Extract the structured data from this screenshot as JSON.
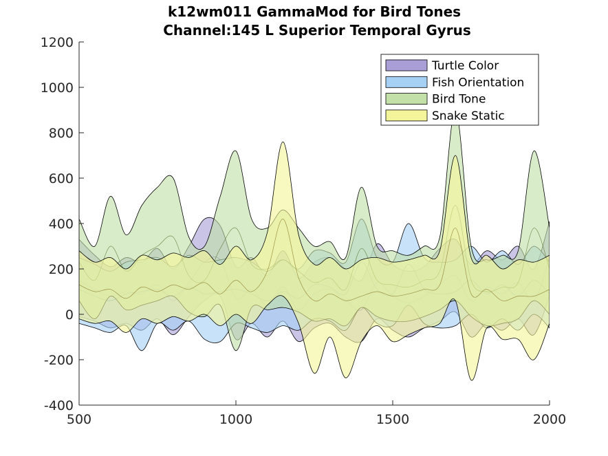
{
  "chart_data": {
    "type": "area",
    "title": "k12wm011 GammaMod for Bird Tones",
    "subtitle": "Channel:145 L Superior Temporal Gyrus",
    "xlabel": "",
    "ylabel": "",
    "xlim": [
      500,
      2000
    ],
    "ylim": [
      -400,
      1200
    ],
    "xticks": [
      500,
      1000,
      1500,
      2000
    ],
    "xtick_labels": [
      "500",
      "1000",
      "1500",
      "2000"
    ],
    "yticks": [
      -400,
      -200,
      0,
      200,
      400,
      600,
      800,
      1000,
      1200
    ],
    "ytick_labels": [
      "-400",
      "-200",
      "0",
      "200",
      "400",
      "600",
      "800",
      "1000",
      "1200"
    ],
    "grid": false,
    "legend_placement": "top-right",
    "series": [
      {
        "name": "Turtle Color",
        "color": "#a99fd6",
        "x": [
          500,
          550,
          600,
          650,
          700,
          750,
          800,
          850,
          900,
          950,
          1000,
          1050,
          1100,
          1150,
          1200,
          1250,
          1300,
          1350,
          1400,
          1450,
          1500,
          1550,
          1600,
          1650,
          1700,
          1750,
          1800,
          1850,
          1900,
          1950,
          2000
        ],
        "upper": [
          330,
          260,
          210,
          250,
          230,
          290,
          200,
          300,
          420,
          390,
          210,
          250,
          170,
          280,
          160,
          230,
          250,
          200,
          150,
          310,
          220,
          190,
          210,
          290,
          330,
          220,
          280,
          240,
          300,
          200,
          410
        ],
        "mean": [
          150,
          110,
          80,
          100,
          90,
          130,
          60,
          140,
          230,
          240,
          70,
          110,
          40,
          120,
          20,
          90,
          110,
          60,
          20,
          140,
          80,
          50,
          80,
          130,
          170,
          60,
          120,
          90,
          140,
          60,
          250
        ],
        "lower": [
          -10,
          -30,
          -60,
          -40,
          -70,
          -20,
          -90,
          -10,
          60,
          80,
          -110,
          -40,
          -100,
          -30,
          -120,
          -60,
          -40,
          -100,
          -120,
          -20,
          -70,
          -100,
          -60,
          -30,
          10,
          -100,
          -40,
          -70,
          -20,
          -90,
          80
        ]
      },
      {
        "name": "Fish Orientation",
        "color": "#a6d1f5",
        "x": [
          500,
          550,
          600,
          650,
          700,
          750,
          800,
          850,
          900,
          950,
          1000,
          1050,
          1100,
          1150,
          1200,
          1250,
          1300,
          1350,
          1400,
          1450,
          1500,
          1550,
          1600,
          1650,
          1700,
          1750,
          1800,
          1850,
          1900,
          1950,
          2000
        ],
        "upper": [
          250,
          220,
          190,
          230,
          240,
          250,
          210,
          260,
          230,
          240,
          250,
          230,
          190,
          240,
          200,
          280,
          270,
          230,
          420,
          250,
          230,
          400,
          250,
          230,
          240,
          300,
          230,
          280,
          220,
          300,
          230
        ],
        "mean": [
          110,
          80,
          60,
          90,
          100,
          110,
          80,
          120,
          90,
          100,
          110,
          90,
          60,
          100,
          70,
          130,
          120,
          90,
          230,
          110,
          90,
          220,
          110,
          90,
          100,
          150,
          90,
          130,
          80,
          150,
          90
        ],
        "lower": [
          -40,
          -60,
          -80,
          -50,
          -160,
          -40,
          -70,
          -30,
          -110,
          -120,
          -40,
          -60,
          -80,
          -50,
          -70,
          -20,
          -30,
          -70,
          30,
          -40,
          -50,
          40,
          -40,
          -60,
          -50,
          0,
          -60,
          -20,
          -70,
          0,
          -60
        ]
      },
      {
        "name": "Bird Tone",
        "color": "#c2e0a8",
        "x": [
          500,
          550,
          600,
          650,
          700,
          750,
          800,
          850,
          900,
          950,
          1000,
          1050,
          1100,
          1150,
          1200,
          1250,
          1300,
          1350,
          1400,
          1450,
          1500,
          1550,
          1600,
          1650,
          1700,
          1750,
          1800,
          1850,
          1900,
          1950,
          2000
        ],
        "upper": [
          420,
          300,
          520,
          350,
          480,
          560,
          600,
          340,
          300,
          520,
          720,
          420,
          380,
          460,
          380,
          300,
          320,
          250,
          560,
          300,
          280,
          260,
          300,
          340,
          900,
          300,
          240,
          260,
          280,
          720,
          380
        ],
        "mean": [
          230,
          150,
          300,
          190,
          260,
          300,
          340,
          170,
          150,
          290,
          380,
          220,
          200,
          240,
          190,
          140,
          160,
          110,
          290,
          150,
          130,
          120,
          150,
          190,
          480,
          150,
          100,
          120,
          140,
          380,
          200
        ],
        "lower": [
          60,
          -20,
          80,
          20,
          40,
          60,
          80,
          10,
          -10,
          40,
          -160,
          30,
          20,
          30,
          10,
          -30,
          -20,
          -50,
          30,
          -10,
          -30,
          -30,
          -10,
          20,
          60,
          -10,
          -50,
          -40,
          -20,
          60,
          0
        ]
      },
      {
        "name": "Snake Static",
        "color": "#f4f59a",
        "x": [
          500,
          550,
          600,
          650,
          700,
          750,
          800,
          850,
          900,
          950,
          1000,
          1050,
          1100,
          1150,
          1200,
          1250,
          1300,
          1350,
          1400,
          1450,
          1500,
          1550,
          1600,
          1650,
          1700,
          1750,
          1800,
          1850,
          1900,
          1950,
          2000
        ],
        "upper": [
          280,
          230,
          250,
          200,
          260,
          240,
          270,
          250,
          280,
          220,
          300,
          240,
          360,
          760,
          350,
          220,
          250,
          200,
          240,
          250,
          230,
          240,
          260,
          280,
          700,
          250,
          260,
          200,
          240,
          230,
          260
        ],
        "mean": [
          130,
          100,
          110,
          70,
          120,
          100,
          130,
          110,
          140,
          90,
          150,
          100,
          190,
          420,
          160,
          60,
          90,
          60,
          80,
          100,
          80,
          90,
          110,
          130,
          380,
          90,
          110,
          60,
          80,
          80,
          110
        ],
        "lower": [
          -20,
          -40,
          -30,
          -80,
          -20,
          -40,
          -10,
          -30,
          0,
          -50,
          0,
          -40,
          40,
          80,
          -40,
          -260,
          -100,
          -280,
          -120,
          -50,
          -120,
          -90,
          -60,
          -40,
          60,
          -290,
          -60,
          -110,
          -110,
          -200,
          -40
        ]
      }
    ]
  }
}
